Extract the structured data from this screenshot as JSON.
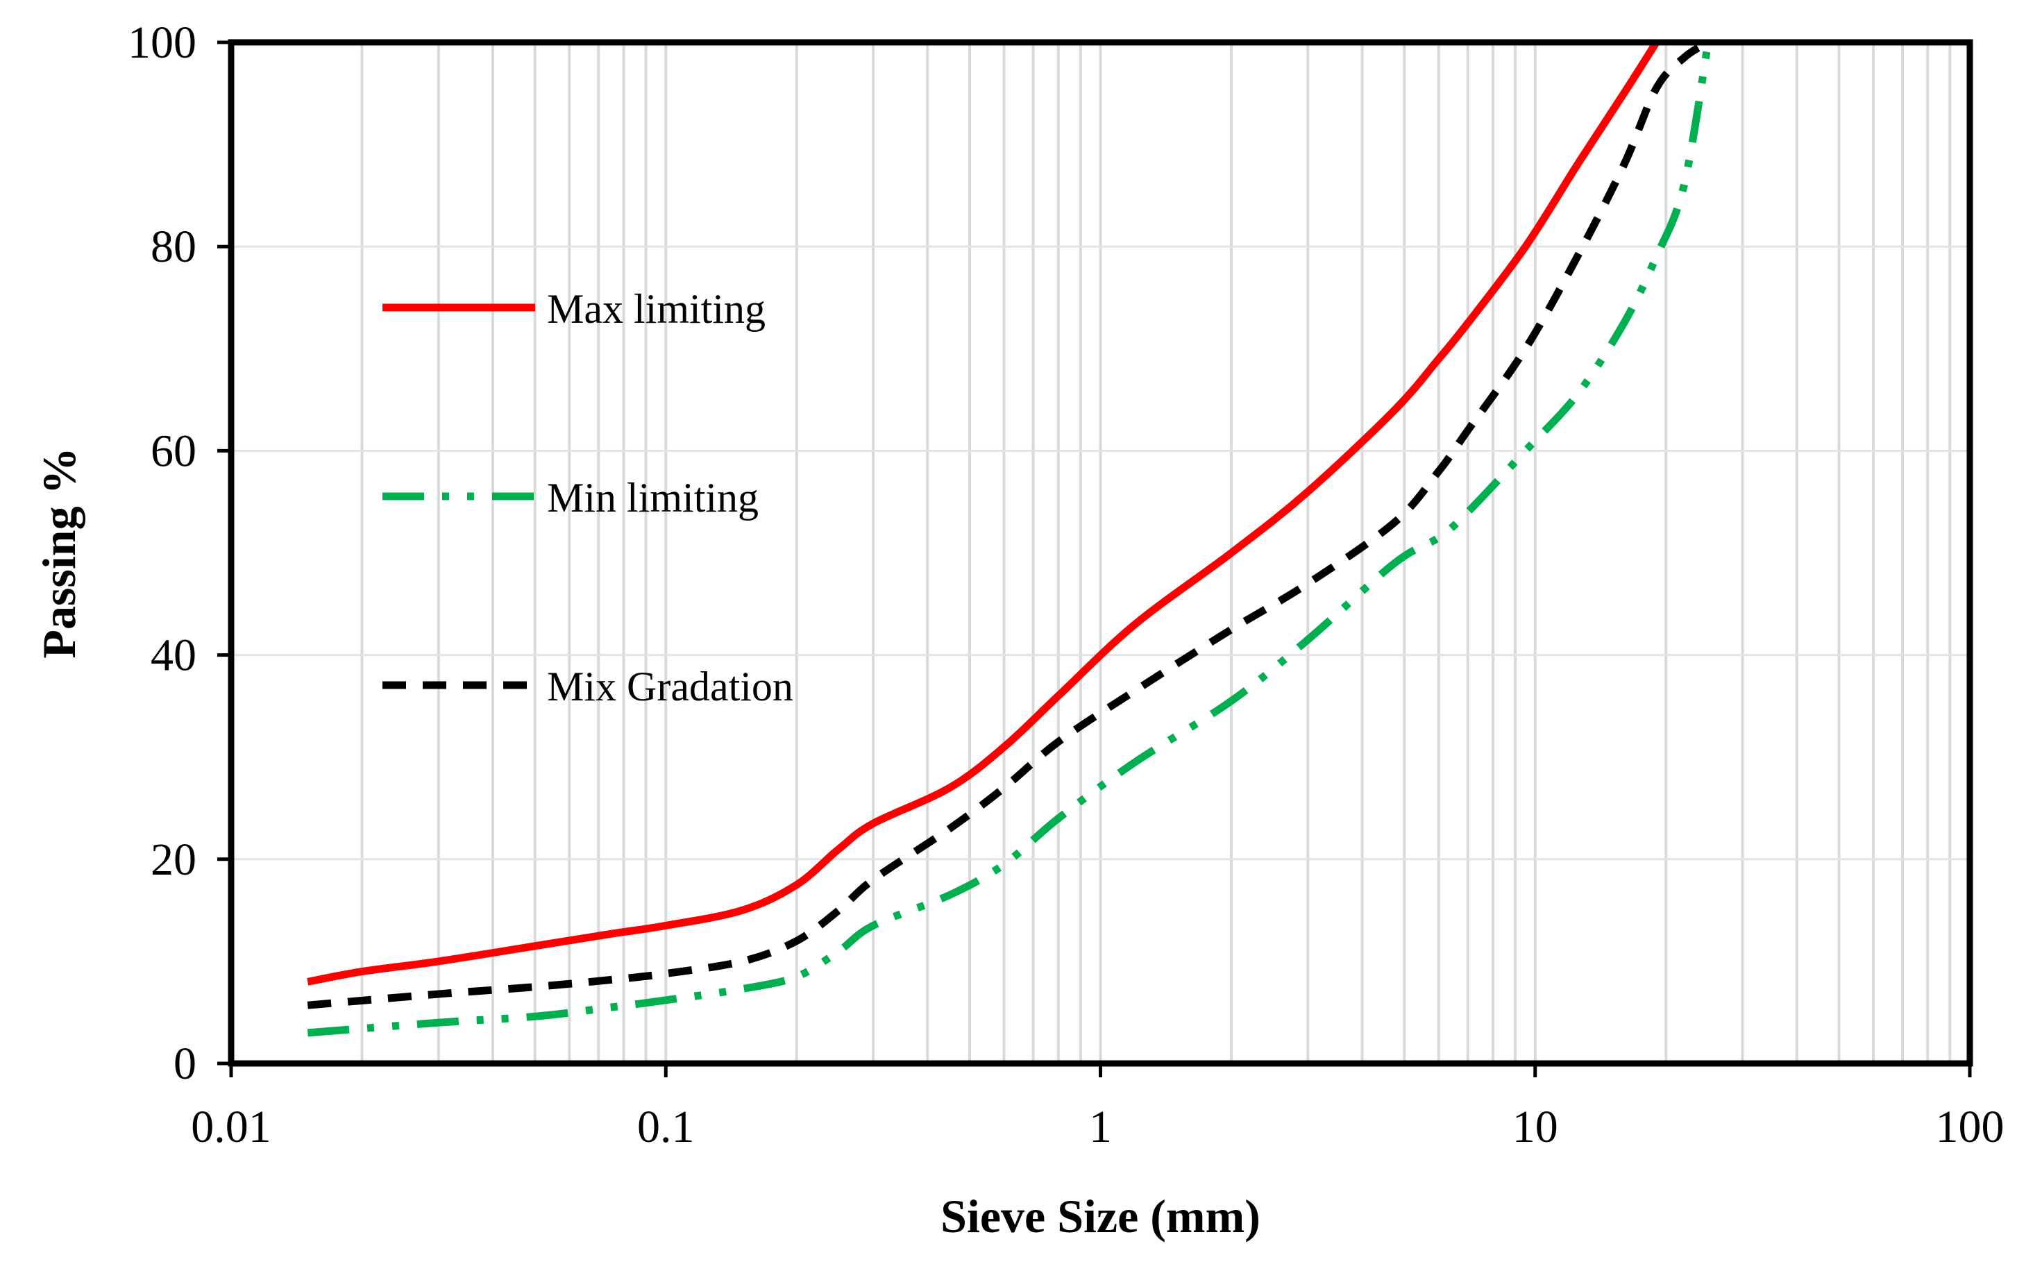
{
  "chart_data": {
    "type": "line",
    "title": "",
    "xlabel": "Sieve Size (mm)",
    "ylabel": "Passing %",
    "xscale": "log",
    "xlim": [
      0.01,
      100
    ],
    "ylim": [
      0,
      100
    ],
    "x_ticks": [
      0.01,
      0.1,
      1,
      10,
      100
    ],
    "x_tick_labels": [
      "0.01",
      "0.1",
      "1",
      "10",
      "100"
    ],
    "y_ticks": [
      0,
      20,
      40,
      60,
      80,
      100
    ],
    "y_tick_labels": [
      "0",
      "20",
      "40",
      "60",
      "80",
      "100"
    ],
    "grid": "x-minor-log and y-major",
    "legend_position": "upper-left inside plot",
    "series": [
      {
        "name": "Max limiting",
        "color": "#ff0000",
        "style": "solid",
        "x": [
          0.015,
          0.02,
          0.03,
          0.05,
          0.075,
          0.1,
          0.15,
          0.2,
          0.25,
          0.3,
          0.45,
          0.6,
          0.8,
          1.2,
          2,
          3,
          4.75,
          6,
          7,
          9.5,
          12.5,
          16,
          19
        ],
        "y": [
          8,
          9,
          10,
          11.5,
          12.7,
          13.5,
          15,
          17.5,
          21,
          23.5,
          27,
          31,
          36,
          43,
          50,
          56,
          64,
          69,
          72.5,
          80,
          88,
          95,
          100
        ]
      },
      {
        "name": "Min limiting",
        "color": "#00b050",
        "style": "dash-dot-dot",
        "x": [
          0.015,
          0.03,
          0.05,
          0.075,
          0.1,
          0.15,
          0.2,
          0.25,
          0.3,
          0.45,
          0.6,
          0.8,
          1.2,
          2,
          3,
          4.75,
          6,
          7,
          9.5,
          12.5,
          16,
          19,
          22,
          25
        ],
        "y": [
          3,
          4,
          4.6,
          5.5,
          6.2,
          7.3,
          8.5,
          11,
          13.5,
          16.5,
          19.5,
          24,
          29.5,
          35.5,
          41.5,
          49,
          51.5,
          54,
          60,
          65.5,
          72.5,
          79,
          86,
          100
        ]
      },
      {
        "name": "Mix Gradation",
        "color": "#000000",
        "style": "dashed",
        "x": [
          0.015,
          0.03,
          0.05,
          0.075,
          0.1,
          0.15,
          0.2,
          0.25,
          0.3,
          0.45,
          0.6,
          0.8,
          1.2,
          2,
          3,
          4.75,
          6,
          7,
          9.5,
          12.5,
          16,
          19,
          22,
          25
        ],
        "y": [
          5.7,
          6.8,
          7.5,
          8.2,
          8.8,
          10,
          12,
          15,
          18,
          23,
          27,
          31.5,
          36.5,
          42.5,
          47,
          53,
          58,
          62,
          70,
          79,
          88,
          95.5,
          98.5,
          100
        ]
      }
    ]
  }
}
